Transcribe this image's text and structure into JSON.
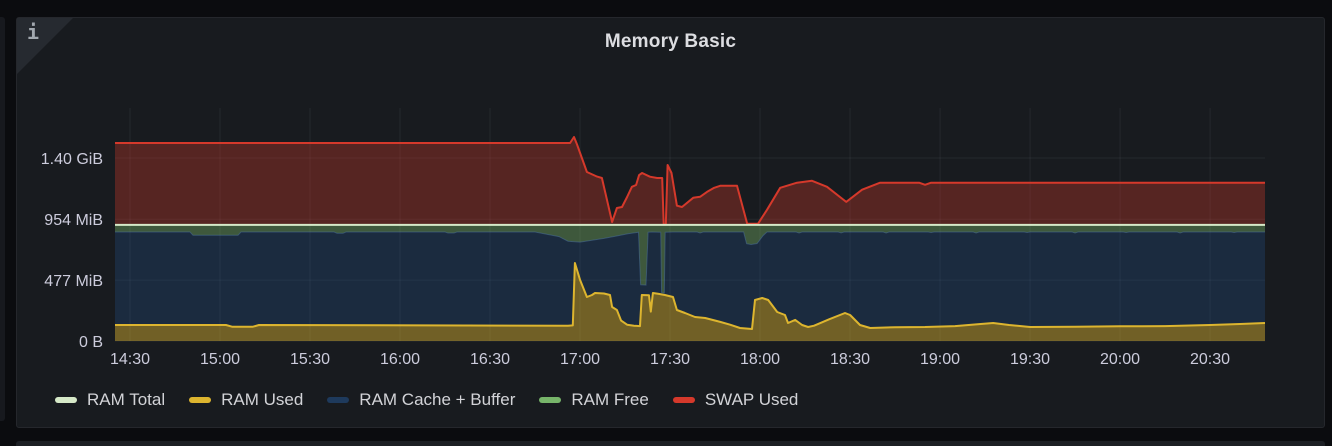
{
  "panel": {
    "title": "Memory Basic",
    "info_corner_glyph": "i"
  },
  "colors": {
    "panel_bg": "#181b1f",
    "text": "#ccccdc",
    "grid": "rgba(204,212,222,0.075)"
  },
  "chart_data": {
    "type": "area",
    "title": "Memory Basic",
    "stacked": true,
    "unit": "MiB",
    "x_unit": "minutes_of_day",
    "xlim": [
      865,
      1248.3
    ],
    "ylim": [
      0,
      1888
    ],
    "grid": true,
    "legend_position": "bottom-left",
    "x_ticks": [
      {
        "label": "14:30",
        "t": 870
      },
      {
        "label": "15:00",
        "t": 900
      },
      {
        "label": "15:30",
        "t": 930
      },
      {
        "label": "16:00",
        "t": 960
      },
      {
        "label": "16:30",
        "t": 990
      },
      {
        "label": "17:00",
        "t": 1020
      },
      {
        "label": "17:30",
        "t": 1050
      },
      {
        "label": "18:00",
        "t": 1080
      },
      {
        "label": "18:30",
        "t": 1110
      },
      {
        "label": "19:00",
        "t": 1140
      },
      {
        "label": "19:30",
        "t": 1170
      },
      {
        "label": "20:00",
        "t": 1200
      },
      {
        "label": "20:30",
        "t": 1230
      }
    ],
    "y_ticks": [
      {
        "label": "1.40 GiB",
        "value": 1433.6
      },
      {
        "label": "954 MiB",
        "value": 954
      },
      {
        "label": "477 MiB",
        "value": 477
      },
      {
        "label": "0 B",
        "value": 0
      }
    ],
    "series": [
      {
        "name": "RAM Total",
        "color": "#d6e9c8",
        "style": "line",
        "value_mib": 910
      },
      {
        "name": "RAM Used",
        "color": "#ddb52f",
        "fill": "rgba(221,181,47,0.45)",
        "style": "area"
      },
      {
        "name": "RAM Cache + Buffer",
        "color": "#1e3a5c",
        "fill": "rgba(36,90,160,0.25)",
        "style": "area"
      },
      {
        "name": "RAM Free",
        "color": "#77b56a",
        "fill": "rgba(119,181,106,0.40)",
        "style": "area"
      },
      {
        "name": "SWAP Used",
        "color": "#d5392b",
        "fill": "rgba(213,57,43,0.33)",
        "style": "area"
      }
    ],
    "stack_boundaries": {
      "ram_total_mib": 910,
      "ram_used_top": [
        [
          865,
          125
        ],
        [
          902,
          125
        ],
        [
          904,
          112
        ],
        [
          911,
          112
        ],
        [
          913,
          125
        ],
        [
          1016,
          120
        ],
        [
          1017.6,
          122
        ],
        [
          1018.3,
          611
        ],
        [
          1020,
          480
        ],
        [
          1022.3,
          345
        ],
        [
          1024,
          360
        ],
        [
          1025,
          376
        ],
        [
          1028,
          372
        ],
        [
          1030,
          360
        ],
        [
          1030.7,
          266
        ],
        [
          1032.3,
          243
        ],
        [
          1033.7,
          160
        ],
        [
          1035.7,
          128
        ],
        [
          1038,
          120
        ],
        [
          1040,
          117
        ],
        [
          1040.6,
          360
        ],
        [
          1043,
          358
        ],
        [
          1043.6,
          230
        ],
        [
          1044.3,
          376
        ],
        [
          1046,
          370
        ],
        [
          1048.3,
          360
        ],
        [
          1051,
          345
        ],
        [
          1052.3,
          243
        ],
        [
          1055,
          219
        ],
        [
          1058.3,
          188
        ],
        [
          1061.7,
          180
        ],
        [
          1066.7,
          150
        ],
        [
          1070,
          128
        ],
        [
          1073.3,
          102
        ],
        [
          1077.3,
          94
        ],
        [
          1078.3,
          321
        ],
        [
          1080.7,
          337
        ],
        [
          1082.7,
          321
        ],
        [
          1085.7,
          227
        ],
        [
          1088.3,
          204
        ],
        [
          1089.3,
          141
        ],
        [
          1091.7,
          165
        ],
        [
          1094,
          125
        ],
        [
          1096,
          110
        ],
        [
          1098,
          120
        ],
        [
          1103,
          170
        ],
        [
          1108.3,
          219
        ],
        [
          1110,
          204
        ],
        [
          1113.3,
          125
        ],
        [
          1116.7,
          102
        ],
        [
          1125,
          108
        ],
        [
          1135,
          110
        ],
        [
          1145,
          117
        ],
        [
          1152,
          130
        ],
        [
          1157.7,
          141
        ],
        [
          1163,
          125
        ],
        [
          1170,
          110
        ],
        [
          1185,
          112
        ],
        [
          1200,
          115
        ],
        [
          1215,
          117
        ],
        [
          1230,
          125
        ],
        [
          1240,
          133
        ],
        [
          1248.3,
          141
        ]
      ],
      "cache_plus_used_top": [
        [
          865,
          854
        ],
        [
          890,
          854
        ],
        [
          891,
          828
        ],
        [
          906,
          828
        ],
        [
          907,
          854
        ],
        [
          938,
          854
        ],
        [
          939,
          844
        ],
        [
          941,
          844
        ],
        [
          942,
          854
        ],
        [
          975,
          854
        ],
        [
          976,
          846
        ],
        [
          978,
          846
        ],
        [
          979,
          854
        ],
        [
          1005,
          854
        ],
        [
          1013,
          818
        ],
        [
          1016,
          782
        ],
        [
          1020,
          775
        ],
        [
          1024,
          790
        ],
        [
          1028,
          804
        ],
        [
          1032,
          822
        ],
        [
          1036,
          840
        ],
        [
          1039.5,
          852
        ],
        [
          1040.2,
          440
        ],
        [
          1042,
          438
        ],
        [
          1042.7,
          852
        ],
        [
          1044,
          854
        ],
        [
          1046.9,
          852
        ],
        [
          1047.2,
          378
        ],
        [
          1048.1,
          376
        ],
        [
          1048.4,
          852
        ],
        [
          1051,
          854
        ],
        [
          1059,
          854
        ],
        [
          1060,
          846
        ],
        [
          1061,
          854
        ],
        [
          1068,
          854
        ],
        [
          1074.5,
          854
        ],
        [
          1075.5,
          762
        ],
        [
          1077,
          756
        ],
        [
          1079,
          764
        ],
        [
          1081,
          826
        ],
        [
          1082.3,
          854
        ],
        [
          1092,
          854
        ],
        [
          1093,
          846
        ],
        [
          1094,
          854
        ],
        [
          1106,
          854
        ],
        [
          1107,
          848
        ],
        [
          1108,
          854
        ],
        [
          1121,
          854
        ],
        [
          1122,
          846
        ],
        [
          1123,
          854
        ],
        [
          1136,
          854
        ],
        [
          1137,
          850
        ],
        [
          1138,
          854
        ],
        [
          1151,
          854
        ],
        [
          1152,
          846
        ],
        [
          1153,
          854
        ],
        [
          1168,
          854
        ],
        [
          1169,
          850
        ],
        [
          1170,
          854
        ],
        [
          1184,
          854
        ],
        [
          1185,
          846
        ],
        [
          1186,
          854
        ],
        [
          1201,
          854
        ],
        [
          1202,
          850
        ],
        [
          1203,
          854
        ],
        [
          1219,
          854
        ],
        [
          1220,
          846
        ],
        [
          1221,
          854
        ],
        [
          1237,
          854
        ],
        [
          1238,
          850
        ],
        [
          1239,
          854
        ],
        [
          1248.3,
          854
        ]
      ],
      "total_plus_swap_top": [
        [
          865,
          1551
        ],
        [
          1016.7,
          1551
        ],
        [
          1018,
          1598
        ],
        [
          1019,
          1540
        ],
        [
          1022.3,
          1324
        ],
        [
          1025.7,
          1288
        ],
        [
          1027.3,
          1277
        ],
        [
          1030.7,
          932
        ],
        [
          1032.3,
          1042
        ],
        [
          1034,
          1050
        ],
        [
          1035.7,
          1128
        ],
        [
          1037.3,
          1208
        ],
        [
          1038.7,
          1222
        ],
        [
          1039.7,
          1300
        ],
        [
          1040.7,
          1316
        ],
        [
          1043.3,
          1287
        ],
        [
          1045.7,
          1277
        ],
        [
          1047.4,
          1277
        ],
        [
          1047.9,
          912
        ],
        [
          1048.6,
          912
        ],
        [
          1049.2,
          1379
        ],
        [
          1050.5,
          1316
        ],
        [
          1052.3,
          1060
        ],
        [
          1054,
          1050
        ],
        [
          1057.7,
          1122
        ],
        [
          1060,
          1130
        ],
        [
          1062.3,
          1168
        ],
        [
          1064.7,
          1200
        ],
        [
          1066.7,
          1216
        ],
        [
          1072.3,
          1216
        ],
        [
          1075.7,
          918
        ],
        [
          1079.3,
          918
        ],
        [
          1082.3,
          1028
        ],
        [
          1086.7,
          1200
        ],
        [
          1092.3,
          1240
        ],
        [
          1097.3,
          1255
        ],
        [
          1102.3,
          1208
        ],
        [
          1108.7,
          1090
        ],
        [
          1114,
          1185
        ],
        [
          1120,
          1240
        ],
        [
          1133,
          1240
        ],
        [
          1135,
          1224
        ],
        [
          1137,
          1240
        ],
        [
          1248.3,
          1240
        ]
      ]
    }
  }
}
